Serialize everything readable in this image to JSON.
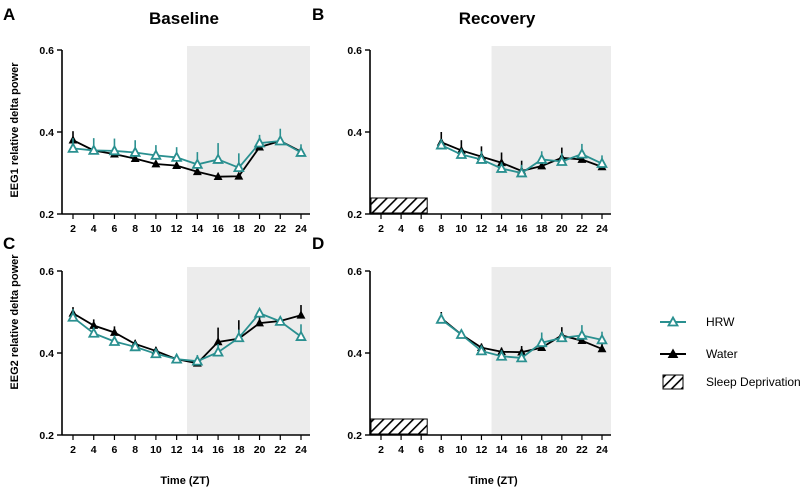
{
  "colors": {
    "hrw": "#2a9090",
    "water": "#000000",
    "shade": "#ececec"
  },
  "titles": {
    "baseline": "Baseline",
    "recovery": "Recovery"
  },
  "axes": {
    "ylabel_eeg1": "EEG1 relative delta power",
    "ylabel_eeg2": "EEG2 relative delta power",
    "xlabel": "Time (ZT)"
  },
  "legend": {
    "hrw": "HRW",
    "water": "Water",
    "sd": "Sleep Deprivation"
  },
  "chart_data": [
    {
      "panel": "A",
      "type": "line",
      "title": "Baseline",
      "ylabel": "EEG1 relative delta power",
      "xlabel": "Time (ZT)",
      "ylim": [
        0.2,
        0.6
      ],
      "yticks": [
        0.2,
        0.4,
        0.6
      ],
      "xticks": [
        2,
        4,
        6,
        8,
        10,
        12,
        14,
        16,
        18,
        20,
        22,
        24
      ],
      "dark_phase": [
        13,
        25
      ],
      "sleep_deprivation": null,
      "series": [
        {
          "name": "HRW",
          "x": [
            2,
            4,
            6,
            8,
            10,
            12,
            14,
            16,
            18,
            20,
            22,
            24
          ],
          "values": [
            0.36,
            0.355,
            0.354,
            0.35,
            0.343,
            0.338,
            0.321,
            0.333,
            0.313,
            0.373,
            0.378,
            0.35
          ],
          "err": [
            0.025,
            0.03,
            0.03,
            0.03,
            0.025,
            0.025,
            0.03,
            0.04,
            0.035,
            0.02,
            0.03,
            0.02
          ]
        },
        {
          "name": "Water",
          "x": [
            2,
            4,
            6,
            8,
            10,
            12,
            14,
            16,
            18,
            20,
            22,
            24
          ],
          "values": [
            0.38,
            0.355,
            0.346,
            0.335,
            0.322,
            0.318,
            0.303,
            0.291,
            0.292,
            0.363,
            0.378,
            0.352
          ],
          "err": [
            0.022,
            0,
            0,
            0,
            0,
            0,
            0,
            0,
            0,
            0,
            0,
            0
          ]
        }
      ]
    },
    {
      "panel": "B",
      "type": "line",
      "title": "Recovery",
      "ylabel": "",
      "xlabel": "Time (ZT)",
      "ylim": [
        0.2,
        0.6
      ],
      "yticks": [
        0.2,
        0.4,
        0.6
      ],
      "xticks": [
        2,
        4,
        6,
        8,
        10,
        12,
        14,
        16,
        18,
        20,
        22,
        24
      ],
      "dark_phase": [
        13,
        25
      ],
      "sleep_deprivation": [
        0,
        6.6
      ],
      "series": [
        {
          "name": "HRW",
          "x": [
            8,
            10,
            12,
            14,
            16,
            18,
            20,
            22,
            24
          ],
          "values": [
            0.368,
            0.345,
            0.333,
            0.311,
            0.3,
            0.333,
            0.328,
            0.346,
            0.323
          ],
          "err": [
            0.015,
            0.015,
            0.02,
            0.015,
            0.02,
            0.02,
            0.02,
            0.025,
            0.02
          ]
        },
        {
          "name": "Water",
          "x": [
            8,
            10,
            12,
            14,
            16,
            18,
            20,
            22,
            24
          ],
          "values": [
            0.375,
            0.355,
            0.34,
            0.325,
            0.305,
            0.317,
            0.337,
            0.333,
            0.315
          ],
          "err": [
            0.025,
            0.025,
            0.025,
            0.025,
            0.025,
            0,
            0.025,
            0,
            0
          ]
        }
      ]
    },
    {
      "panel": "C",
      "type": "line",
      "title": "",
      "ylabel": "EEG2 relative delta power",
      "xlabel": "Time (ZT)",
      "ylim": [
        0.2,
        0.6
      ],
      "yticks": [
        0.2,
        0.4,
        0.6
      ],
      "xticks": [
        2,
        4,
        6,
        8,
        10,
        12,
        14,
        16,
        18,
        20,
        22,
        24
      ],
      "dark_phase": [
        13,
        25
      ],
      "sleep_deprivation": null,
      "series": [
        {
          "name": "HRW",
          "x": [
            2,
            4,
            6,
            8,
            10,
            12,
            14,
            16,
            18,
            20,
            22,
            24
          ],
          "values": [
            0.487,
            0.448,
            0.428,
            0.415,
            0.398,
            0.385,
            0.38,
            0.402,
            0.437,
            0.497,
            0.477,
            0.44
          ],
          "err": [
            0.02,
            0.015,
            0.015,
            0.01,
            0.01,
            0.01,
            0.015,
            0.02,
            0.02,
            0.01,
            0.01,
            0.03
          ]
        },
        {
          "name": "Water",
          "x": [
            2,
            4,
            6,
            8,
            10,
            12,
            14,
            16,
            18,
            20,
            22,
            24
          ],
          "values": [
            0.497,
            0.467,
            0.45,
            0.422,
            0.405,
            0.385,
            0.375,
            0.427,
            0.435,
            0.473,
            0.478,
            0.492
          ],
          "err": [
            0.015,
            0.015,
            0.015,
            0.01,
            0.01,
            0.01,
            0.01,
            0.035,
            0.045,
            0.02,
            0,
            0.025
          ]
        }
      ]
    },
    {
      "panel": "D",
      "type": "line",
      "title": "",
      "ylabel": "",
      "xlabel": "Time (ZT)",
      "ylim": [
        0.2,
        0.6
      ],
      "yticks": [
        0.2,
        0.4,
        0.6
      ],
      "xticks": [
        2,
        4,
        6,
        8,
        10,
        12,
        14,
        16,
        18,
        20,
        22,
        24
      ],
      "dark_phase": [
        13,
        25
      ],
      "sleep_deprivation": [
        0,
        6.6
      ],
      "series": [
        {
          "name": "HRW",
          "x": [
            8,
            10,
            12,
            14,
            16,
            18,
            20,
            22,
            24
          ],
          "values": [
            0.482,
            0.445,
            0.405,
            0.392,
            0.388,
            0.425,
            0.437,
            0.443,
            0.432
          ],
          "err": [
            0.015,
            0.01,
            0.01,
            0.015,
            0.015,
            0.025,
            0.015,
            0.025,
            0.02
          ]
        },
        {
          "name": "Water",
          "x": [
            8,
            10,
            12,
            14,
            16,
            18,
            20,
            22,
            24
          ],
          "values": [
            0.485,
            0.445,
            0.413,
            0.403,
            0.402,
            0.413,
            0.443,
            0.43,
            0.41
          ],
          "err": [
            0.015,
            0.01,
            0.01,
            0.01,
            0.015,
            0.01,
            0.02,
            0,
            0.02
          ]
        }
      ]
    }
  ]
}
